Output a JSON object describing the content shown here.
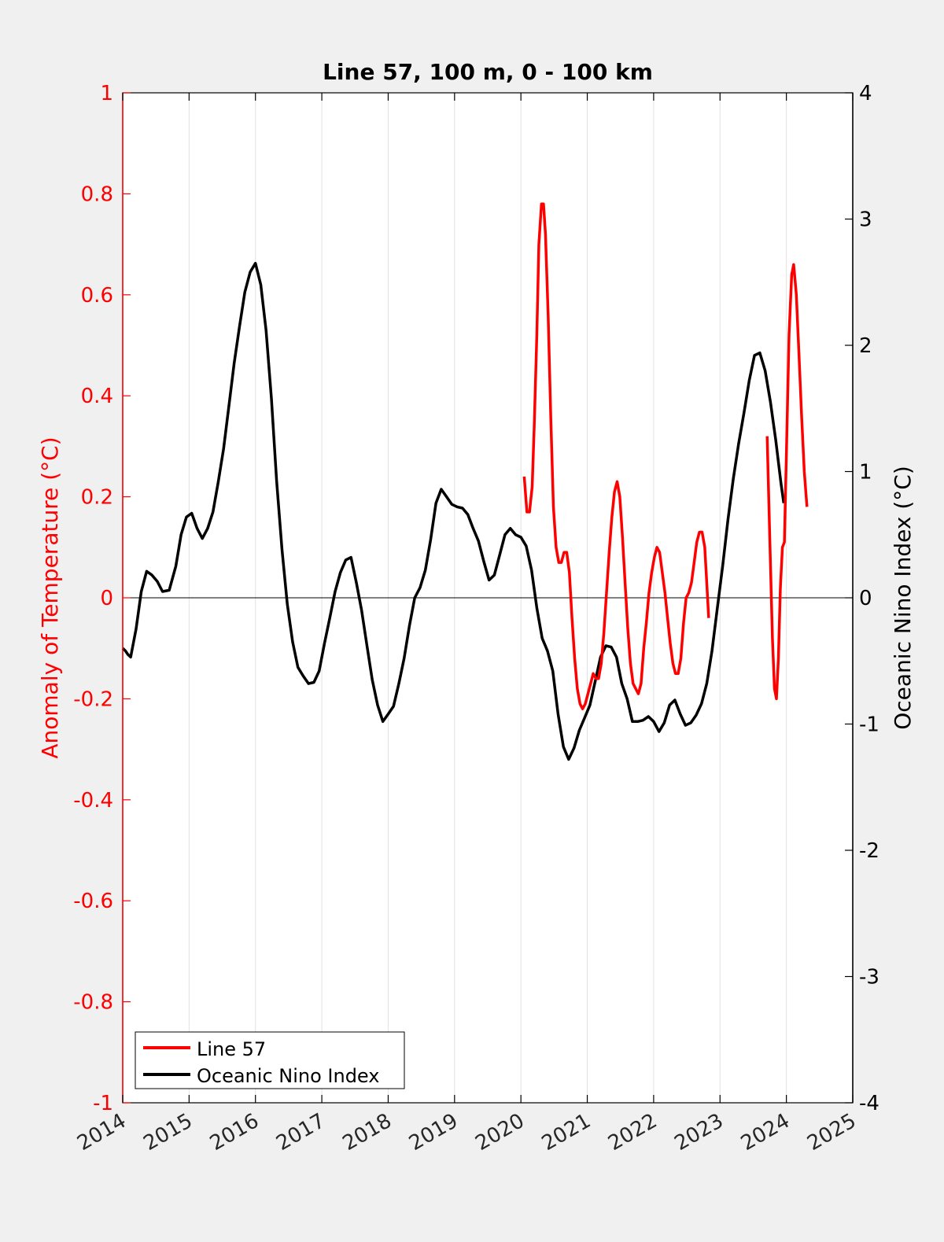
{
  "colors": {
    "background": "#f0f0f0",
    "axes_background": "#ffffff",
    "left_axis": "#ff0000",
    "right_axis": "#000000",
    "line57": "#ff0000",
    "oni": "#000000",
    "grid": "#e2e2e2"
  },
  "chart_data": {
    "type": "line",
    "title": "Line 57, 100 m, 0 - 100 km",
    "xlabel": "",
    "ylabel_left": "Anomaly of Temperature (°C)",
    "ylabel_right": "Oceanic Nino Index (°C)",
    "xlim": [
      2014,
      2025
    ],
    "ylim_left": [
      -1,
      1
    ],
    "ylim_right": [
      -4,
      4
    ],
    "xticks": [
      "2014",
      "2015",
      "2016",
      "2017",
      "2018",
      "2019",
      "2020",
      "2021",
      "2022",
      "2023",
      "2024",
      "2025"
    ],
    "yticks_left": [
      "1",
      "0.8",
      "0.6",
      "0.4",
      "0.2",
      "0",
      "-0.2",
      "-0.4",
      "-0.6",
      "-0.8",
      "-1"
    ],
    "yticks_right": [
      "4",
      "3",
      "2",
      "1",
      "0",
      "-1",
      "-2",
      "-3",
      "-4"
    ],
    "grid": "vertical",
    "zero_line": true,
    "legend": {
      "placement": "bottom-left",
      "entries": [
        "Line 57",
        "Oceanic Nino Index"
      ]
    },
    "series": [
      {
        "name": "Line 57",
        "axis": "left",
        "segments": [
          [
            [
              2020.05,
              0.24
            ],
            [
              2020.09,
              0.17
            ],
            [
              2020.13,
              0.17
            ],
            [
              2020.17,
              0.22
            ],
            [
              2020.2,
              0.34
            ],
            [
              2020.24,
              0.52
            ],
            [
              2020.27,
              0.7
            ],
            [
              2020.31,
              0.78
            ],
            [
              2020.34,
              0.78
            ],
            [
              2020.37,
              0.72
            ],
            [
              2020.41,
              0.56
            ],
            [
              2020.45,
              0.36
            ],
            [
              2020.49,
              0.18
            ],
            [
              2020.53,
              0.1
            ],
            [
              2020.57,
              0.07
            ],
            [
              2020.61,
              0.07
            ],
            [
              2020.65,
              0.09
            ],
            [
              2020.69,
              0.09
            ],
            [
              2020.73,
              0.05
            ],
            [
              2020.77,
              -0.04
            ],
            [
              2020.81,
              -0.12
            ],
            [
              2020.85,
              -0.18
            ],
            [
              2020.89,
              -0.21
            ],
            [
              2020.93,
              -0.22
            ],
            [
              2020.97,
              -0.21
            ],
            [
              2021.01,
              -0.19
            ],
            [
              2021.05,
              -0.17
            ],
            [
              2021.09,
              -0.15
            ],
            [
              2021.13,
              -0.16
            ],
            [
              2021.17,
              -0.16
            ],
            [
              2021.21,
              -0.13
            ],
            [
              2021.25,
              -0.07
            ],
            [
              2021.29,
              0.01
            ],
            [
              2021.33,
              0.09
            ],
            [
              2021.37,
              0.16
            ],
            [
              2021.41,
              0.21
            ],
            [
              2021.45,
              0.23
            ],
            [
              2021.49,
              0.2
            ],
            [
              2021.53,
              0.12
            ],
            [
              2021.57,
              0.03
            ],
            [
              2021.61,
              -0.06
            ],
            [
              2021.65,
              -0.13
            ],
            [
              2021.69,
              -0.17
            ],
            [
              2021.73,
              -0.18
            ],
            [
              2021.77,
              -0.19
            ],
            [
              2021.81,
              -0.17
            ],
            [
              2021.85,
              -0.1
            ],
            [
              2021.89,
              -0.05
            ],
            [
              2021.93,
              0.01
            ],
            [
              2021.97,
              0.05
            ],
            [
              2022.01,
              0.08
            ],
            [
              2022.05,
              0.1
            ],
            [
              2022.09,
              0.09
            ],
            [
              2022.13,
              0.05
            ],
            [
              2022.17,
              0.01
            ],
            [
              2022.21,
              -0.04
            ],
            [
              2022.25,
              -0.09
            ],
            [
              2022.29,
              -0.13
            ],
            [
              2022.33,
              -0.15
            ],
            [
              2022.37,
              -0.15
            ],
            [
              2022.41,
              -0.12
            ],
            [
              2022.45,
              -0.05
            ],
            [
              2022.49,
              0.0
            ],
            [
              2022.53,
              0.01
            ],
            [
              2022.57,
              0.03
            ],
            [
              2022.61,
              0.07
            ],
            [
              2022.65,
              0.11
            ],
            [
              2022.69,
              0.13
            ],
            [
              2022.73,
              0.13
            ],
            [
              2022.77,
              0.1
            ],
            [
              2022.8,
              0.03
            ],
            [
              2022.83,
              -0.04
            ]
          ],
          [
            [
              2023.71,
              0.32
            ],
            [
              2023.75,
              0.12
            ],
            [
              2023.79,
              -0.08
            ],
            [
              2023.82,
              -0.18
            ],
            [
              2023.85,
              -0.2
            ],
            [
              2023.88,
              -0.12
            ],
            [
              2023.91,
              0.02
            ],
            [
              2023.94,
              0.1
            ],
            [
              2023.97,
              0.11
            ],
            [
              2024.0,
              0.28
            ],
            [
              2024.04,
              0.52
            ],
            [
              2024.08,
              0.64
            ],
            [
              2024.11,
              0.66
            ],
            [
              2024.15,
              0.6
            ],
            [
              2024.19,
              0.48
            ],
            [
              2024.23,
              0.36
            ],
            [
              2024.27,
              0.25
            ],
            [
              2024.31,
              0.18
            ]
          ]
        ]
      },
      {
        "name": "Oceanic Nino Index",
        "axis": "right",
        "segments": [
          [
            [
              2014.0,
              -0.4
            ],
            [
              2014.04,
              -0.42
            ],
            [
              2014.08,
              -0.45
            ],
            [
              2014.12,
              -0.47
            ],
            [
              2014.2,
              -0.25
            ],
            [
              2014.28,
              0.05
            ],
            [
              2014.36,
              0.21
            ],
            [
              2014.44,
              0.18
            ],
            [
              2014.52,
              0.13
            ],
            [
              2014.6,
              0.05
            ],
            [
              2014.7,
              0.06
            ],
            [
              2014.8,
              0.25
            ],
            [
              2014.88,
              0.5
            ],
            [
              2014.96,
              0.64
            ],
            [
              2015.04,
              0.67
            ],
            [
              2015.12,
              0.55
            ],
            [
              2015.2,
              0.47
            ],
            [
              2015.28,
              0.55
            ],
            [
              2015.36,
              0.68
            ],
            [
              2015.44,
              0.92
            ],
            [
              2015.52,
              1.18
            ],
            [
              2015.6,
              1.52
            ],
            [
              2015.68,
              1.86
            ],
            [
              2015.76,
              2.15
            ],
            [
              2015.84,
              2.42
            ],
            [
              2015.92,
              2.58
            ],
            [
              2016.0,
              2.65
            ],
            [
              2016.08,
              2.48
            ],
            [
              2016.16,
              2.12
            ],
            [
              2016.24,
              1.58
            ],
            [
              2016.32,
              0.92
            ],
            [
              2016.4,
              0.38
            ],
            [
              2016.48,
              -0.05
            ],
            [
              2016.56,
              -0.35
            ],
            [
              2016.64,
              -0.55
            ],
            [
              2016.72,
              -0.62
            ],
            [
              2016.8,
              -0.68
            ],
            [
              2016.88,
              -0.67
            ],
            [
              2016.96,
              -0.58
            ],
            [
              2017.04,
              -0.36
            ],
            [
              2017.12,
              -0.16
            ],
            [
              2017.2,
              0.05
            ],
            [
              2017.28,
              0.2
            ],
            [
              2017.36,
              0.3
            ],
            [
              2017.44,
              0.32
            ],
            [
              2017.52,
              0.12
            ],
            [
              2017.6,
              -0.1
            ],
            [
              2017.68,
              -0.38
            ],
            [
              2017.76,
              -0.65
            ],
            [
              2017.84,
              -0.85
            ],
            [
              2017.92,
              -0.98
            ],
            [
              2018.0,
              -0.92
            ],
            [
              2018.08,
              -0.86
            ],
            [
              2018.16,
              -0.68
            ],
            [
              2018.24,
              -0.48
            ],
            [
              2018.32,
              -0.22
            ],
            [
              2018.4,
              0.0
            ],
            [
              2018.48,
              0.08
            ],
            [
              2018.56,
              0.22
            ],
            [
              2018.64,
              0.46
            ],
            [
              2018.72,
              0.75
            ],
            [
              2018.8,
              0.86
            ],
            [
              2018.88,
              0.8
            ],
            [
              2018.96,
              0.74
            ],
            [
              2019.04,
              0.72
            ],
            [
              2019.12,
              0.71
            ],
            [
              2019.2,
              0.66
            ],
            [
              2019.28,
              0.55
            ],
            [
              2019.36,
              0.45
            ],
            [
              2019.44,
              0.29
            ],
            [
              2019.52,
              0.14
            ],
            [
              2019.6,
              0.18
            ],
            [
              2019.68,
              0.34
            ],
            [
              2019.76,
              0.5
            ],
            [
              2019.84,
              0.55
            ],
            [
              2019.92,
              0.5
            ],
            [
              2020.0,
              0.48
            ],
            [
              2020.08,
              0.41
            ],
            [
              2020.16,
              0.22
            ],
            [
              2020.24,
              -0.08
            ],
            [
              2020.32,
              -0.32
            ],
            [
              2020.4,
              -0.42
            ],
            [
              2020.48,
              -0.58
            ],
            [
              2020.56,
              -0.92
            ],
            [
              2020.64,
              -1.18
            ],
            [
              2020.72,
              -1.28
            ],
            [
              2020.8,
              -1.19
            ],
            [
              2020.88,
              -1.05
            ],
            [
              2020.96,
              -0.95
            ],
            [
              2021.04,
              -0.85
            ],
            [
              2021.12,
              -0.66
            ],
            [
              2021.2,
              -0.47
            ],
            [
              2021.28,
              -0.38
            ],
            [
              2021.36,
              -0.39
            ],
            [
              2021.44,
              -0.47
            ],
            [
              2021.52,
              -0.68
            ],
            [
              2021.6,
              -0.8
            ],
            [
              2021.68,
              -0.98
            ],
            [
              2021.76,
              -0.98
            ],
            [
              2021.84,
              -0.97
            ],
            [
              2021.92,
              -0.94
            ],
            [
              2022.0,
              -0.98
            ],
            [
              2022.08,
              -1.06
            ],
            [
              2022.16,
              -0.99
            ],
            [
              2022.24,
              -0.85
            ],
            [
              2022.32,
              -0.81
            ],
            [
              2022.4,
              -0.92
            ],
            [
              2022.48,
              -1.01
            ],
            [
              2022.56,
              -0.99
            ],
            [
              2022.64,
              -0.93
            ],
            [
              2022.72,
              -0.84
            ],
            [
              2022.8,
              -0.68
            ],
            [
              2022.88,
              -0.42
            ],
            [
              2022.96,
              -0.08
            ],
            [
              2023.04,
              0.25
            ],
            [
              2023.12,
              0.62
            ],
            [
              2023.2,
              0.94
            ],
            [
              2023.28,
              1.22
            ],
            [
              2023.36,
              1.46
            ],
            [
              2023.44,
              1.72
            ],
            [
              2023.52,
              1.92
            ],
            [
              2023.6,
              1.94
            ],
            [
              2023.68,
              1.8
            ],
            [
              2023.76,
              1.55
            ],
            [
              2023.84,
              1.25
            ],
            [
              2023.92,
              0.9
            ],
            [
              2023.96,
              0.75
            ]
          ]
        ]
      }
    ]
  }
}
